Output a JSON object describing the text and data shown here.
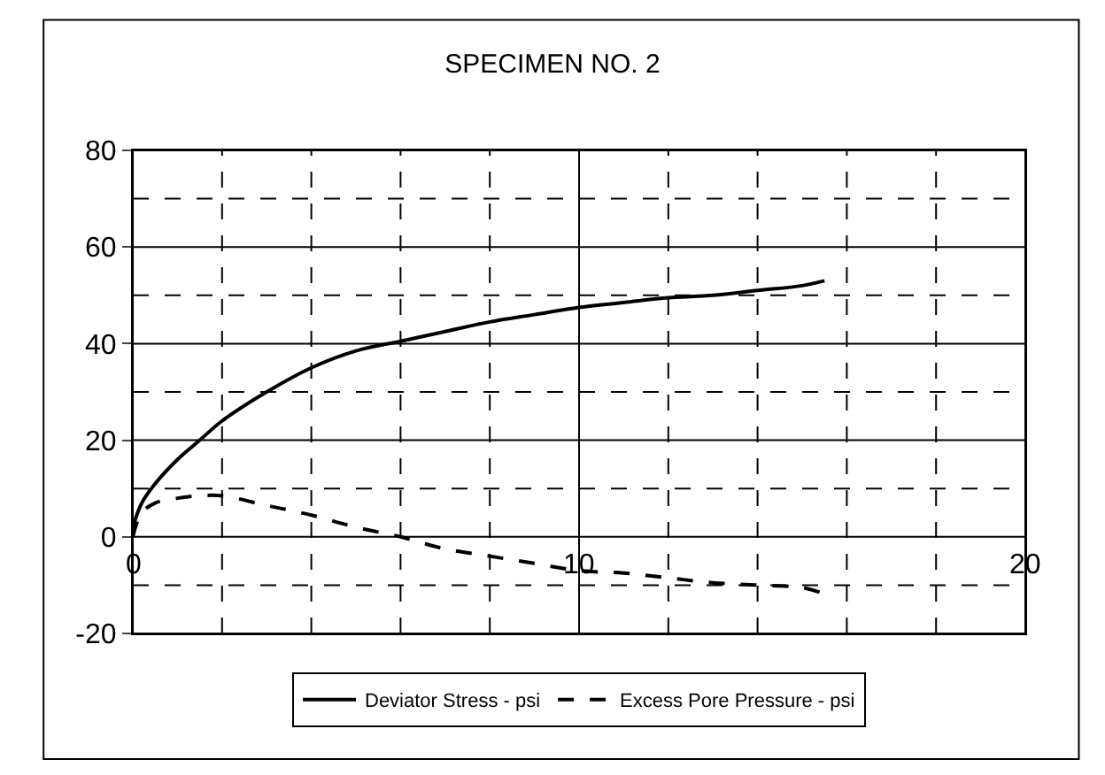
{
  "chart_data": {
    "type": "line",
    "title": "SPECIMEN NO. 2",
    "xlim": [
      0,
      20
    ],
    "xticks": [
      0,
      {
        "value": 2,
        "label": null
      },
      {
        "value": 4,
        "label": null
      },
      {
        "value": 6,
        "label": null
      },
      {
        "value": 8,
        "label": null
      },
      10,
      {
        "value": 12,
        "label": null
      },
      {
        "value": 14,
        "label": null
      },
      {
        "value": 16,
        "label": null
      },
      {
        "value": 18,
        "label": null
      },
      20
    ],
    "ylim": [
      -20,
      80
    ],
    "yticks": [
      -20,
      {
        "value": -10,
        "label": null
      },
      0,
      {
        "value": 10,
        "label": null
      },
      20,
      {
        "value": 30,
        "label": null
      },
      40,
      {
        "value": 50,
        "label": null
      },
      60,
      {
        "value": 70,
        "label": null
      },
      80
    ],
    "grid": true,
    "legend": "bottom",
    "marker": "none",
    "series": [
      {
        "name": "Deviator Stress - psi",
        "color": "#000000",
        "line_style": "solid",
        "x": [
          0,
          0.2,
          0.5,
          1,
          1.5,
          2,
          3,
          4,
          5,
          6,
          7,
          8,
          9,
          10,
          11,
          12,
          13,
          14,
          15,
          15.5
        ],
        "values": [
          2,
          7,
          11,
          16,
          20,
          24,
          30,
          35,
          38.5,
          40.5,
          42.5,
          44.5,
          46,
          47.5,
          48.5,
          49.5,
          50,
          51,
          52,
          53
        ]
      },
      {
        "name": "Excess Pore Pressure - psi",
        "color": "#000000",
        "line_style": "dashed",
        "x": [
          0,
          0.2,
          0.5,
          1,
          1.5,
          2,
          3,
          4,
          5,
          6,
          7,
          8,
          9,
          10,
          11,
          12,
          13,
          14,
          15,
          15.4
        ],
        "values": [
          0,
          5,
          7,
          8,
          8.5,
          8.5,
          6.5,
          4.5,
          2,
          0,
          -2.5,
          -4,
          -5.5,
          -7,
          -7.5,
          -8.5,
          -9.5,
          -10,
          -10.5,
          -11.5
        ]
      }
    ]
  }
}
